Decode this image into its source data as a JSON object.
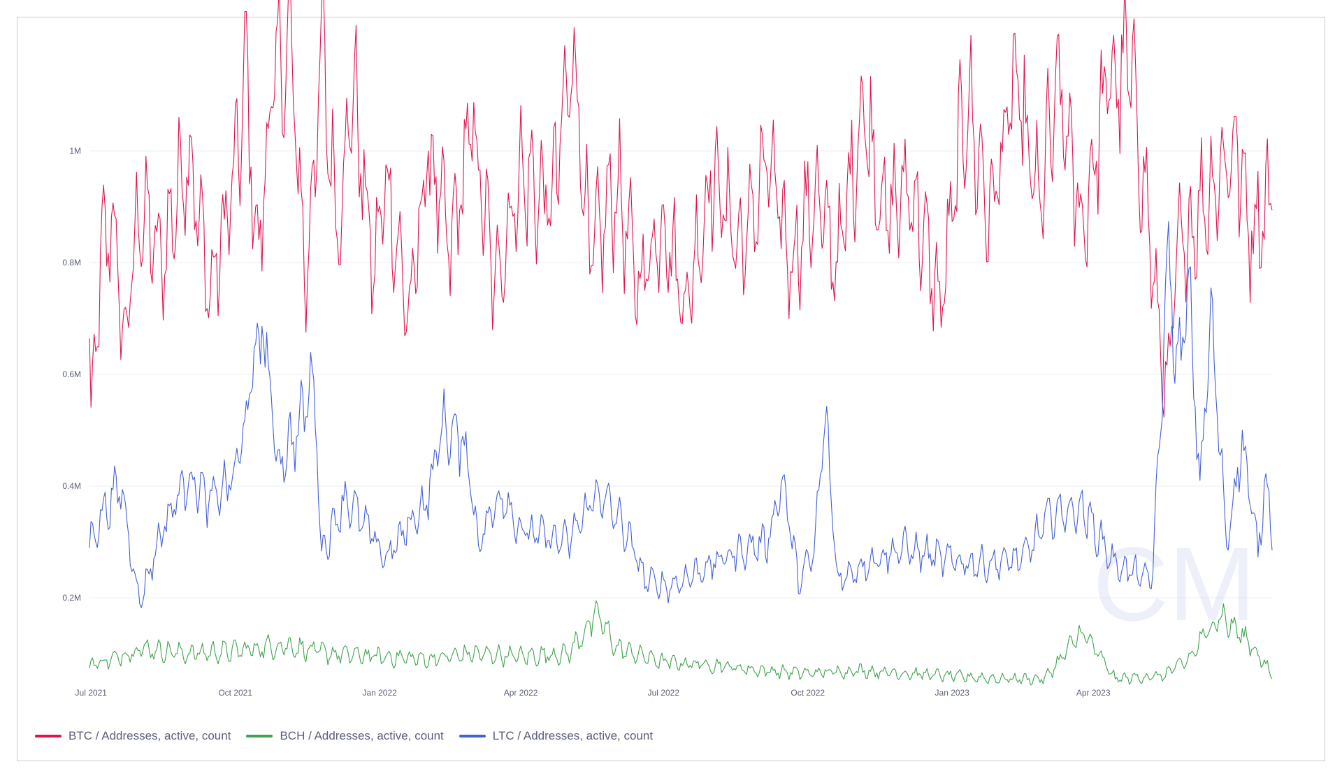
{
  "chart_data": {
    "type": "line",
    "title": "",
    "xlabel": "",
    "ylabel": "",
    "x_range": [
      "2021-06-30",
      "2023-07-24"
    ],
    "ylim": [
      20000,
      1220000
    ],
    "y_ticks": [
      {
        "value": 200000,
        "label": "0.2M"
      },
      {
        "value": 400000,
        "label": "0.4M"
      },
      {
        "value": 600000,
        "label": "0.6M"
      },
      {
        "value": 800000,
        "label": "0.8M"
      },
      {
        "value": 1000000,
        "label": "1M"
      }
    ],
    "x_ticks": [
      {
        "date": "2021-07-01",
        "label": "Jul 2021"
      },
      {
        "date": "2021-10-01",
        "label": "Oct 2021"
      },
      {
        "date": "2022-01-01",
        "label": "Jan 2022"
      },
      {
        "date": "2022-04-01",
        "label": "Apr 2022"
      },
      {
        "date": "2022-07-01",
        "label": "Jul 2022"
      },
      {
        "date": "2022-10-01",
        "label": "Oct 2022"
      },
      {
        "date": "2023-01-01",
        "label": "Jan 2023"
      },
      {
        "date": "2023-04-01",
        "label": "Apr 2023"
      }
    ],
    "grid": true,
    "legend_position": "bottom-left",
    "watermark": "CM",
    "series": [
      {
        "name": "BTC / Addresses, active, count",
        "color": "#e0144c",
        "points": [
          [
            "2021-06-30",
            650000
          ],
          [
            "2021-07-01",
            520000
          ],
          [
            "2021-07-08",
            820000
          ],
          [
            "2021-07-15",
            880000
          ],
          [
            "2021-07-22",
            650000
          ],
          [
            "2021-08-01",
            900000
          ],
          [
            "2021-08-15",
            800000
          ],
          [
            "2021-09-01",
            1010000
          ],
          [
            "2021-09-15",
            740000
          ],
          [
            "2021-10-01",
            960000
          ],
          [
            "2021-10-08",
            1140000
          ],
          [
            "2021-10-15",
            800000
          ],
          [
            "2021-10-25",
            1120000
          ],
          [
            "2021-11-05",
            1190000
          ],
          [
            "2021-11-15",
            760000
          ],
          [
            "2021-11-25",
            1180000
          ],
          [
            "2021-12-05",
            860000
          ],
          [
            "2021-12-15",
            1120000
          ],
          [
            "2021-12-28",
            780000
          ],
          [
            "2022-01-05",
            950000
          ],
          [
            "2022-01-20",
            700000
          ],
          [
            "2022-02-01",
            1000000
          ],
          [
            "2022-02-15",
            820000
          ],
          [
            "2022-03-01",
            1050000
          ],
          [
            "2022-03-15",
            760000
          ],
          [
            "2022-04-01",
            960000
          ],
          [
            "2022-04-20",
            900000
          ],
          [
            "2022-05-05",
            1180000
          ],
          [
            "2022-05-15",
            800000
          ],
          [
            "2022-06-01",
            940000
          ],
          [
            "2022-06-15",
            760000
          ],
          [
            "2022-07-01",
            880000
          ],
          [
            "2022-07-15",
            720000
          ],
          [
            "2022-08-01",
            960000
          ],
          [
            "2022-08-20",
            820000
          ],
          [
            "2022-09-05",
            980000
          ],
          [
            "2022-09-20",
            800000
          ],
          [
            "2022-10-05",
            920000
          ],
          [
            "2022-10-20",
            800000
          ],
          [
            "2022-11-05",
            1080000
          ],
          [
            "2022-11-20",
            880000
          ],
          [
            "2022-12-05",
            940000
          ],
          [
            "2022-12-25",
            720000
          ],
          [
            "2023-01-10",
            1100000
          ],
          [
            "2023-01-25",
            880000
          ],
          [
            "2023-02-10",
            1120000
          ],
          [
            "2023-02-25",
            900000
          ],
          [
            "2023-03-10",
            1110000
          ],
          [
            "2023-03-25",
            860000
          ],
          [
            "2023-04-10",
            1120000
          ],
          [
            "2023-04-25",
            1150000
          ],
          [
            "2023-05-05",
            900000
          ],
          [
            "2023-05-12",
            700000
          ],
          [
            "2023-05-18",
            560000
          ],
          [
            "2023-05-25",
            820000
          ],
          [
            "2023-06-05",
            880000
          ],
          [
            "2023-06-20",
            960000
          ],
          [
            "2023-07-01",
            1010000
          ],
          [
            "2023-07-10",
            860000
          ],
          [
            "2023-07-24",
            920000
          ]
        ]
      },
      {
        "name": "BCH / Addresses, active, count",
        "color": "#3fa34d",
        "points": [
          [
            "2021-06-30",
            80000
          ],
          [
            "2021-07-15",
            90000
          ],
          [
            "2021-08-01",
            110000
          ],
          [
            "2021-09-01",
            100000
          ],
          [
            "2021-10-01",
            105000
          ],
          [
            "2021-11-01",
            115000
          ],
          [
            "2021-12-01",
            100000
          ],
          [
            "2022-01-01",
            95000
          ],
          [
            "2022-02-01",
            90000
          ],
          [
            "2022-03-01",
            100000
          ],
          [
            "2022-04-01",
            95000
          ],
          [
            "2022-05-01",
            100000
          ],
          [
            "2022-05-20",
            170000
          ],
          [
            "2022-06-01",
            110000
          ],
          [
            "2022-07-01",
            85000
          ],
          [
            "2022-08-01",
            80000
          ],
          [
            "2022-09-01",
            70000
          ],
          [
            "2022-10-01",
            65000
          ],
          [
            "2022-11-01",
            70000
          ],
          [
            "2022-12-01",
            65000
          ],
          [
            "2023-01-01",
            60000
          ],
          [
            "2023-02-01",
            55000
          ],
          [
            "2023-03-01",
            55000
          ],
          [
            "2023-03-25",
            140000
          ],
          [
            "2023-04-15",
            55000
          ],
          [
            "2023-05-15",
            60000
          ],
          [
            "2023-06-01",
            90000
          ],
          [
            "2023-06-20",
            170000
          ],
          [
            "2023-07-10",
            120000
          ],
          [
            "2023-07-24",
            60000
          ]
        ]
      },
      {
        "name": "LTC / Addresses, active, count",
        "color": "#4360d6",
        "points": [
          [
            "2021-06-30",
            300000
          ],
          [
            "2021-07-10",
            360000
          ],
          [
            "2021-07-20",
            400000
          ],
          [
            "2021-08-01",
            190000
          ],
          [
            "2021-08-15",
            320000
          ],
          [
            "2021-09-01",
            420000
          ],
          [
            "2021-09-15",
            370000
          ],
          [
            "2021-10-01",
            420000
          ],
          [
            "2021-10-10",
            560000
          ],
          [
            "2021-10-18",
            700000
          ],
          [
            "2021-10-28",
            440000
          ],
          [
            "2021-11-10",
            500000
          ],
          [
            "2021-11-20",
            600000
          ],
          [
            "2021-11-25",
            280000
          ],
          [
            "2021-12-10",
            380000
          ],
          [
            "2021-12-25",
            320000
          ],
          [
            "2022-01-05",
            270000
          ],
          [
            "2022-01-20",
            330000
          ],
          [
            "2022-02-01",
            380000
          ],
          [
            "2022-02-10",
            510000
          ],
          [
            "2022-02-25",
            470000
          ],
          [
            "2022-03-05",
            300000
          ],
          [
            "2022-03-20",
            390000
          ],
          [
            "2022-04-01",
            320000
          ],
          [
            "2022-05-01",
            300000
          ],
          [
            "2022-05-20",
            390000
          ],
          [
            "2022-06-05",
            330000
          ],
          [
            "2022-06-20",
            230000
          ],
          [
            "2022-07-05",
            220000
          ],
          [
            "2022-07-25",
            250000
          ],
          [
            "2022-08-15",
            280000
          ],
          [
            "2022-09-05",
            300000
          ],
          [
            "2022-09-15",
            410000
          ],
          [
            "2022-09-25",
            230000
          ],
          [
            "2022-10-05",
            280000
          ],
          [
            "2022-10-12",
            530000
          ],
          [
            "2022-10-20",
            230000
          ],
          [
            "2022-11-05",
            260000
          ],
          [
            "2022-12-01",
            290000
          ],
          [
            "2022-12-25",
            270000
          ],
          [
            "2023-01-20",
            260000
          ],
          [
            "2023-02-15",
            270000
          ],
          [
            "2023-03-05",
            350000
          ],
          [
            "2023-03-25",
            360000
          ],
          [
            "2023-04-15",
            260000
          ],
          [
            "2023-05-01",
            240000
          ],
          [
            "2023-05-08",
            230000
          ],
          [
            "2023-05-13",
            450000
          ],
          [
            "2023-05-18",
            820000
          ],
          [
            "2023-05-25",
            600000
          ],
          [
            "2023-06-01",
            750000
          ],
          [
            "2023-06-08",
            400000
          ],
          [
            "2023-06-15",
            700000
          ],
          [
            "2023-06-25",
            300000
          ],
          [
            "2023-07-05",
            480000
          ],
          [
            "2023-07-15",
            280000
          ],
          [
            "2023-07-20",
            420000
          ],
          [
            "2023-07-24",
            320000
          ]
        ]
      }
    ]
  }
}
